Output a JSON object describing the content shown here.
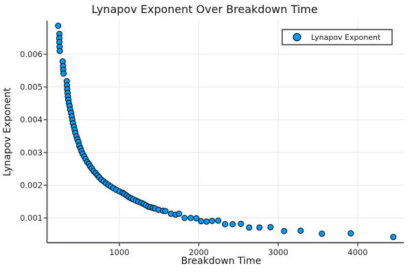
{
  "figure_title": "Lynapov Exponent Over Breakdown Time",
  "legend": {
    "entry": "Lynapov Exponent"
  },
  "style": {
    "background": "#ffffff",
    "marker_fill": "#009af9",
    "marker_stroke": "#000000",
    "grid_color": "#e6e6e6",
    "axis_color": "#3d3d44",
    "text_color": "#111111",
    "legend_border": "#000000",
    "legend_background": "#ffffff"
  },
  "chart_data": {
    "type": "scatter",
    "title": "Lynapov Exponent Over Breakdown Time",
    "xlabel": "Breakdown Time",
    "ylabel": "Lynapov Exponent",
    "legend_entries": [
      "Lynapov Exponent"
    ],
    "legend_position": "top-right",
    "grid": true,
    "xlim": [
      90,
      4580
    ],
    "ylim": [
      0.000245,
      0.007027
    ],
    "xticks": {
      "values": [
        1000,
        2000,
        3000,
        4000
      ],
      "labels": [
        "1000",
        "2000",
        "3000",
        "4000"
      ]
    },
    "yticks": {
      "values": [
        0.001,
        0.002,
        0.003,
        0.004,
        0.005,
        0.006
      ],
      "labels": [
        "0.001",
        "0.002",
        "0.003",
        "0.004",
        "0.005",
        "0.006"
      ]
    },
    "series": [
      {
        "name": "Lynapov Exponent",
        "marker": "circle",
        "marker_radius": 4,
        "points": [
          [
            230,
            0.00687
          ],
          [
            246,
            0.00662
          ],
          [
            245,
            0.00649
          ],
          [
            246,
            0.00637
          ],
          [
            248,
            0.00623
          ],
          [
            250,
            0.0061
          ],
          [
            287,
            0.00578
          ],
          [
            291,
            0.00564
          ],
          [
            293,
            0.00552
          ],
          [
            297,
            0.00541
          ],
          [
            338,
            0.00518
          ],
          [
            341,
            0.00505
          ],
          [
            344,
            0.00493
          ],
          [
            348,
            0.00482
          ],
          [
            352,
            0.00471
          ],
          [
            358,
            0.00461
          ],
          [
            365,
            0.00451
          ],
          [
            374,
            0.00442
          ],
          [
            381,
            0.00431
          ],
          [
            393,
            0.00421
          ],
          [
            400,
            0.0041
          ],
          [
            409,
            0.00399
          ],
          [
            417,
            0.00389
          ],
          [
            428,
            0.00379
          ],
          [
            437,
            0.00369
          ],
          [
            446,
            0.0036
          ],
          [
            460,
            0.00349
          ],
          [
            472,
            0.0034
          ],
          [
            486,
            0.00332
          ],
          [
            495,
            0.00321
          ],
          [
            510,
            0.00313
          ],
          [
            524,
            0.00304
          ],
          [
            538,
            0.00296
          ],
          [
            558,
            0.00288
          ],
          [
            575,
            0.0028
          ],
          [
            596,
            0.00271
          ],
          [
            616,
            0.00265
          ],
          [
            633,
            0.00258
          ],
          [
            653,
            0.00251
          ],
          [
            676,
            0.00243
          ],
          [
            702,
            0.00237
          ],
          [
            725,
            0.0023
          ],
          [
            748,
            0.00224
          ],
          [
            774,
            0.00217
          ],
          [
            803,
            0.00212
          ],
          [
            832,
            0.00206
          ],
          [
            863,
            0.00201
          ],
          [
            892,
            0.00196
          ],
          [
            927,
            0.00191
          ],
          [
            961,
            0.00186
          ],
          [
            1003,
            0.00181
          ],
          [
            1041,
            0.00177
          ],
          [
            1061,
            0.00174
          ],
          [
            1089,
            0.00169
          ],
          [
            1118,
            0.00164
          ],
          [
            1147,
            0.0016
          ],
          [
            1175,
            0.00157
          ],
          [
            1210,
            0.00153
          ],
          [
            1239,
            0.0015
          ],
          [
            1277,
            0.00146
          ],
          [
            1305,
            0.00143
          ],
          [
            1334,
            0.00139
          ],
          [
            1363,
            0.00135
          ],
          [
            1392,
            0.00133
          ],
          [
            1421,
            0.00131
          ],
          [
            1449,
            0.00129
          ],
          [
            1493,
            0.00125
          ],
          [
            1550,
            0.00122
          ],
          [
            1580,
            0.00121
          ],
          [
            1650,
            0.00113
          ],
          [
            1709,
            0.0011
          ],
          [
            1752,
            0.00113
          ],
          [
            1821,
            0.001
          ],
          [
            1899,
            0.001
          ],
          [
            1968,
            0.00099
          ],
          [
            2029,
            0.0009
          ],
          [
            2098,
            0.00089
          ],
          [
            2167,
            0.00091
          ],
          [
            2245,
            0.00092
          ],
          [
            2331,
            0.00081
          ],
          [
            2426,
            0.00081
          ],
          [
            2530,
            0.00082
          ],
          [
            2634,
            0.00071
          ],
          [
            2763,
            0.00071
          ],
          [
            2902,
            0.00072
          ],
          [
            3074,
            0.0006
          ],
          [
            3282,
            0.00061
          ],
          [
            3550,
            0.00052
          ],
          [
            3913,
            0.00053
          ],
          [
            4449,
            0.00042
          ]
        ]
      }
    ]
  }
}
